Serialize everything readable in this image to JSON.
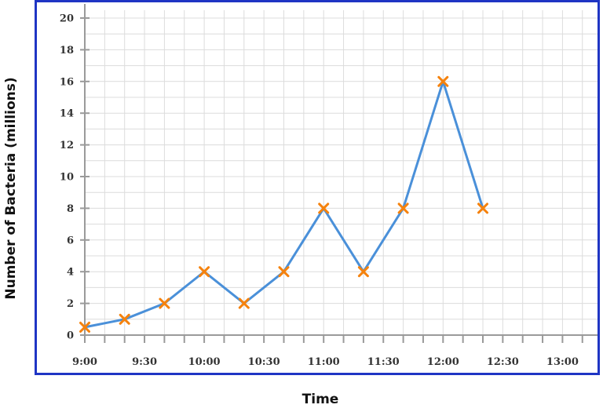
{
  "chart_data": {
    "type": "line",
    "title": "",
    "xlabel": "Time",
    "ylabel": "Number of Bacteria (millions)",
    "x": [
      "9:00",
      "9:20",
      "9:40",
      "10:00",
      "10:20",
      "10:40",
      "11:00",
      "11:20",
      "11:40",
      "12:00",
      "12:20"
    ],
    "series": [
      {
        "values": [
          0.5,
          1,
          2,
          4,
          2,
          4,
          8,
          4,
          8,
          16,
          8
        ]
      }
    ],
    "x_tick_labels": [
      "9:00",
      "9:30",
      "10:00",
      "10:30",
      "11:00",
      "11:30",
      "12:00",
      "12:30",
      "13:00"
    ],
    "x_range_minutes_from_9": [
      0,
      240
    ],
    "y_ticks": [
      0,
      2,
      4,
      6,
      8,
      10,
      12,
      14,
      16,
      18,
      20
    ],
    "ylim": [
      0,
      20
    ],
    "grid": true,
    "line_color": "#4a90d9",
    "marker_color": "#f5820d",
    "marker": "x",
    "frame_color": "#1f35c4",
    "grid_color": "#dcdcdc",
    "axis_color": "#9a9a9a"
  }
}
